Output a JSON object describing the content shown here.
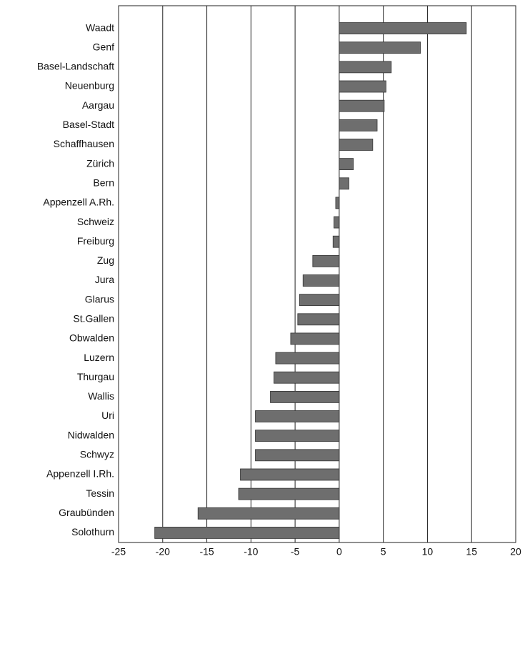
{
  "chart_data": {
    "type": "barh",
    "categories": [
      "Waadt",
      "Genf",
      "Basel-Landschaft",
      "Neuenburg",
      "Aargau",
      "Basel-Stadt",
      "Schaffhausen",
      "Zürich",
      "Bern",
      "Appenzell A.Rh.",
      "Schweiz",
      "Freiburg",
      "Zug",
      "Jura",
      "Glarus",
      "St.Gallen",
      "Obwalden",
      "Luzern",
      "Thurgau",
      "Wallis",
      "Uri",
      "Nidwalden",
      "Schwyz",
      "Appenzell I.Rh.",
      "Tessin",
      "Graubünden",
      "Solothurn"
    ],
    "values": [
      14.4,
      9.2,
      5.9,
      5.3,
      5.1,
      4.3,
      3.8,
      1.6,
      1.1,
      -0.4,
      -0.6,
      -0.7,
      -3.0,
      -4.1,
      -4.5,
      -4.7,
      -5.5,
      -7.2,
      -7.4,
      -7.8,
      -9.5,
      -9.5,
      -9.5,
      -11.2,
      -11.4,
      -16.0,
      -20.9
    ],
    "color": "#6e6e6e",
    "xlim": [
      -25,
      20
    ],
    "xticks": [
      -25,
      -20,
      -15,
      -10,
      -5,
      0,
      5,
      10,
      15,
      20
    ],
    "grid": true
  }
}
